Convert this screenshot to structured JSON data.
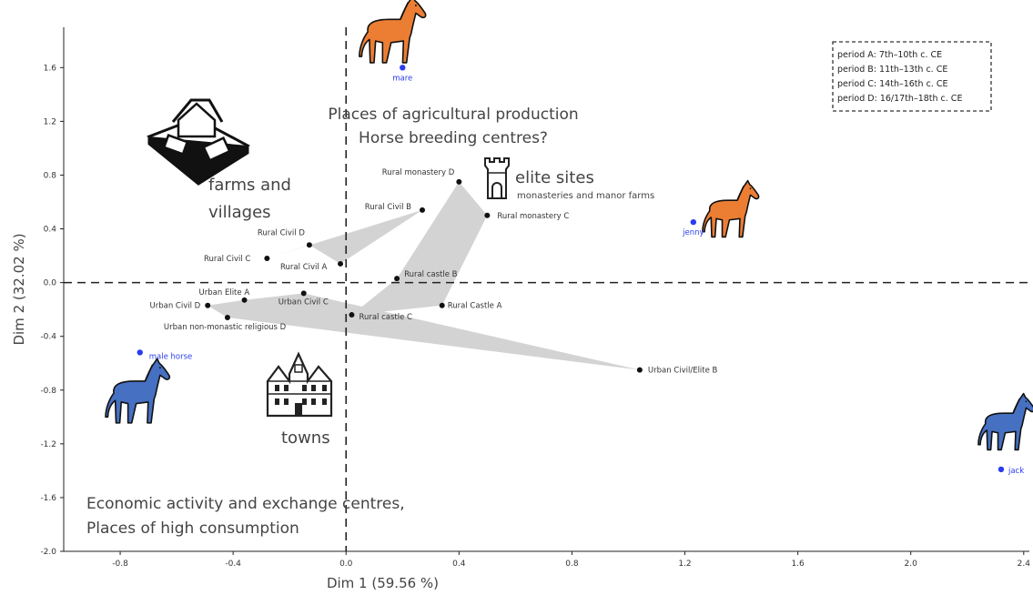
{
  "chart_data": {
    "type": "scatter",
    "xlabel": "Dim 1 (59.56 %)",
    "ylabel": "Dim 2 (32.02 %)",
    "xlim": [
      -1.0,
      2.42
    ],
    "ylim": [
      -2.0,
      1.9
    ],
    "xticks": [
      -0.8,
      -0.4,
      0.0,
      0.4,
      0.8,
      1.2,
      1.6,
      2.0,
      2.4
    ],
    "yticks": [
      -2.0,
      -1.6,
      -1.2,
      -0.8,
      -0.4,
      0.0,
      0.4,
      0.8,
      1.2,
      1.6
    ],
    "points": [
      {
        "label": "Rural monastery D",
        "x": 0.4,
        "y": 0.75
      },
      {
        "label": "Rural Civil B",
        "x": 0.27,
        "y": 0.54
      },
      {
        "label": "Rural monastery C",
        "x": 0.5,
        "y": 0.5
      },
      {
        "label": "Rural Civil D",
        "x": -0.13,
        "y": 0.28
      },
      {
        "label": "Rural Civil C",
        "x": -0.28,
        "y": 0.18
      },
      {
        "label": "Rural Civil A",
        "x": -0.02,
        "y": 0.14
      },
      {
        "label": "Rural castle B",
        "x": 0.18,
        "y": 0.03
      },
      {
        "label": "Urban Elite A",
        "x": -0.36,
        "y": -0.13
      },
      {
        "label": "Urban Civil C",
        "x": -0.15,
        "y": -0.08
      },
      {
        "label": "Urban Civil D",
        "x": -0.49,
        "y": -0.17
      },
      {
        "label": "Rural Castle A",
        "x": 0.34,
        "y": -0.17
      },
      {
        "label": "Rural castle C",
        "x": 0.02,
        "y": -0.24
      },
      {
        "label": "Urban non-monastic religious D",
        "x": -0.42,
        "y": -0.26
      },
      {
        "label": "Urban Civil/Elite B",
        "x": 1.04,
        "y": -0.65
      }
    ],
    "supplementary": [
      {
        "label": "mare",
        "x": 0.2,
        "y": 1.6
      },
      {
        "label": "jenny",
        "x": 1.23,
        "y": 0.45
      },
      {
        "label": "male horse",
        "x": -0.73,
        "y": -0.52
      },
      {
        "label": "jack",
        "x": 2.32,
        "y": -1.39
      }
    ],
    "polygons": [
      [
        "Rural Civil C",
        "Rural Civil B",
        "Rural Civil A",
        "Rural Civil D"
      ],
      [
        "Rural monastery D",
        "Rural monastery C",
        "Rural Castle A",
        "Rural castle C",
        "Rural castle B"
      ],
      [
        "Urban Civil D",
        "Urban Elite A",
        "Urban Civil C",
        "Urban Civil/Elite B",
        "Urban non-monastic religious D"
      ]
    ],
    "legend": {
      "position": "top-right",
      "entries": [
        "period A: 7th–10th c. CE",
        "period B: 11th–13th c. CE",
        "period C: 14th–16th c. CE",
        "period D: 16/17th–18th c. CE"
      ]
    },
    "annotations": {
      "top": [
        "Places of agricultural production",
        "Horse breeding centres?"
      ],
      "elite_title": "elite sites",
      "elite_sub": "monasteries and manor farms",
      "farms": [
        "farms and",
        "villages"
      ],
      "towns": "towns",
      "bottom": [
        "Economic activity and exchange centres,",
        "Places of high consumption"
      ]
    },
    "colors": {
      "polygon": "#d3d3d3",
      "point": "#111111",
      "supplementary": "#2a3cf0",
      "horse_orange": "#ec7e34",
      "horse_blue": "#4670c2"
    }
  }
}
